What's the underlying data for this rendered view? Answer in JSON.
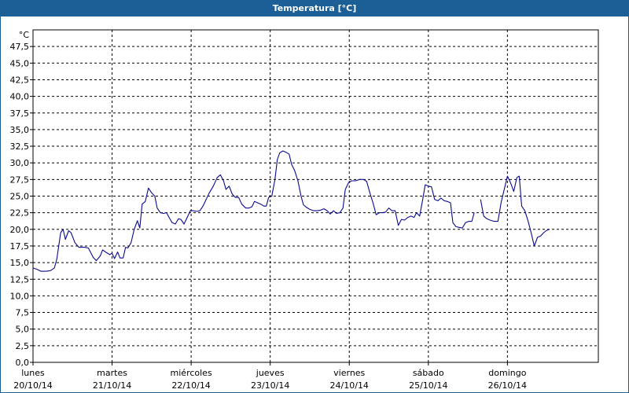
{
  "window": {
    "title": "Temperatura [°C]"
  },
  "chart_data": {
    "type": "line",
    "title": "Temperatura [°C]",
    "ylabel": "°C",
    "ylim": [
      0,
      50
    ],
    "yticks": [
      "0,0",
      "2,5",
      "5,0",
      "7,5",
      "10,0",
      "12,5",
      "15,0",
      "17,5",
      "20,0",
      "22,5",
      "25,0",
      "27,5",
      "30,0",
      "32,5",
      "35,0",
      "37,5",
      "40,0",
      "42,5",
      "45,0",
      "47,5"
    ],
    "xlim": [
      0,
      7.15
    ],
    "x_unit": "days since 20/10/14 00:00",
    "days": [
      {
        "name": "lunes",
        "date": "20/10/14"
      },
      {
        "name": "martes",
        "date": "21/10/14"
      },
      {
        "name": "miércoles",
        "date": "22/10/14"
      },
      {
        "name": "jueves",
        "date": "23/10/14"
      },
      {
        "name": "viernes",
        "date": "24/10/14"
      },
      {
        "name": "sábado",
        "date": "25/10/14"
      },
      {
        "name": "domingo",
        "date": "26/10/14"
      }
    ],
    "grid": true,
    "line_color": "#0a0a8c",
    "series": [
      {
        "segments": [
          [
            [
              0.0,
              14.2
            ],
            [
              0.05,
              14.0
            ],
            [
              0.1,
              13.7
            ],
            [
              0.17,
              13.7
            ],
            [
              0.22,
              13.8
            ],
            [
              0.27,
              14.2
            ],
            [
              0.3,
              15.5
            ],
            [
              0.35,
              19.5
            ],
            [
              0.38,
              20.0
            ],
            [
              0.41,
              18.5
            ],
            [
              0.45,
              19.8
            ],
            [
              0.48,
              19.5
            ],
            [
              0.53,
              18.0
            ],
            [
              0.58,
              17.3
            ],
            [
              0.65,
              17.3
            ],
            [
              0.7,
              17.2
            ],
            [
              0.76,
              15.8
            ],
            [
              0.8,
              15.3
            ],
            [
              0.85,
              16.0
            ],
            [
              0.88,
              16.9
            ],
            [
              0.93,
              16.5
            ],
            [
              0.97,
              16.2
            ],
            [
              1.0,
              16.4
            ],
            [
              1.03,
              15.6
            ],
            [
              1.07,
              16.6
            ],
            [
              1.1,
              15.7
            ],
            [
              1.14,
              15.7
            ],
            [
              1.17,
              17.3
            ],
            [
              1.2,
              17.2
            ],
            [
              1.24,
              18.0
            ],
            [
              1.28,
              20.0
            ],
            [
              1.32,
              21.3
            ],
            [
              1.35,
              20.2
            ],
            [
              1.38,
              23.8
            ],
            [
              1.42,
              24.2
            ],
            [
              1.46,
              26.2
            ],
            [
              1.5,
              25.5
            ],
            [
              1.54,
              25.0
            ],
            [
              1.57,
              23.2
            ],
            [
              1.61,
              22.5
            ],
            [
              1.65,
              22.4
            ],
            [
              1.69,
              22.5
            ],
            [
              1.72,
              21.8
            ],
            [
              1.76,
              21.0
            ],
            [
              1.8,
              20.8
            ],
            [
              1.84,
              21.6
            ],
            [
              1.87,
              21.5
            ],
            [
              1.91,
              20.8
            ],
            [
              1.95,
              21.8
            ],
            [
              1.99,
              22.8
            ],
            [
              2.03,
              22.8
            ],
            [
              2.07,
              22.7
            ],
            [
              2.11,
              22.8
            ],
            [
              2.15,
              23.5
            ],
            [
              2.19,
              24.5
            ],
            [
              2.23,
              25.5
            ],
            [
              2.28,
              26.5
            ],
            [
              2.33,
              27.8
            ],
            [
              2.37,
              28.2
            ],
            [
              2.41,
              27.3
            ],
            [
              2.44,
              26.0
            ],
            [
              2.48,
              26.5
            ],
            [
              2.52,
              25.3
            ],
            [
              2.56,
              24.8
            ],
            [
              2.6,
              24.8
            ],
            [
              2.64,
              23.8
            ],
            [
              2.69,
              23.2
            ],
            [
              2.73,
              23.2
            ],
            [
              2.77,
              23.4
            ],
            [
              2.8,
              24.2
            ],
            [
              2.84,
              24.0
            ],
            [
              2.88,
              23.8
            ],
            [
              2.92,
              23.5
            ],
            [
              2.95,
              23.5
            ],
            [
              2.98,
              24.8
            ],
            [
              3.02,
              25.0
            ],
            [
              3.06,
              27.5
            ],
            [
              3.09,
              30.5
            ],
            [
              3.12,
              31.5
            ],
            [
              3.16,
              31.8
            ],
            [
              3.2,
              31.6
            ],
            [
              3.24,
              31.3
            ],
            [
              3.27,
              29.8
            ],
            [
              3.31,
              28.8
            ],
            [
              3.35,
              27.3
            ],
            [
              3.39,
              25.0
            ],
            [
              3.42,
              23.7
            ],
            [
              3.46,
              23.3
            ],
            [
              3.5,
              23.0
            ],
            [
              3.55,
              22.8
            ],
            [
              3.6,
              22.8
            ],
            [
              3.64,
              22.9
            ],
            [
              3.68,
              23.1
            ],
            [
              3.72,
              22.8
            ],
            [
              3.76,
              22.3
            ],
            [
              3.8,
              22.8
            ],
            [
              3.84,
              22.4
            ],
            [
              3.88,
              22.5
            ],
            [
              3.92,
              23.2
            ],
            [
              3.95,
              26.0
            ],
            [
              3.99,
              27.0
            ],
            [
              4.03,
              27.3
            ],
            [
              4.08,
              27.3
            ],
            [
              4.13,
              27.5
            ],
            [
              4.18,
              27.5
            ],
            [
              4.22,
              27.2
            ],
            [
              4.26,
              25.5
            ],
            [
              4.3,
              24.0
            ],
            [
              4.34,
              22.2
            ],
            [
              4.38,
              22.5
            ],
            [
              4.42,
              22.5
            ],
            [
              4.46,
              22.6
            ],
            [
              4.5,
              23.2
            ],
            [
              4.54,
              22.8
            ],
            [
              4.58,
              22.8
            ],
            [
              4.62,
              20.6
            ],
            [
              4.66,
              21.5
            ],
            [
              4.7,
              21.4
            ],
            [
              4.74,
              21.8
            ],
            [
              4.78,
              22.0
            ],
            [
              4.82,
              21.8
            ],
            [
              4.85,
              22.5
            ],
            [
              4.89,
              22.0
            ],
            [
              4.93,
              24.6
            ],
            [
              4.96,
              26.7
            ],
            [
              5.0,
              26.5
            ],
            [
              5.04,
              26.4
            ],
            [
              5.08,
              24.5
            ],
            [
              5.12,
              24.3
            ],
            [
              5.16,
              24.7
            ],
            [
              5.2,
              24.3
            ],
            [
              5.24,
              24.2
            ],
            [
              5.28,
              24.0
            ],
            [
              5.31,
              21.0
            ],
            [
              5.35,
              20.4
            ],
            [
              5.39,
              20.3
            ],
            [
              5.43,
              20.2
            ],
            [
              5.47,
              21.0
            ],
            [
              5.51,
              21.2
            ],
            [
              5.55,
              21.2
            ],
            [
              5.58,
              22.5
            ]
          ],
          [
            [
              5.66,
              24.5
            ],
            [
              5.7,
              22.0
            ],
            [
              5.74,
              21.6
            ],
            [
              5.78,
              21.4
            ],
            [
              5.83,
              21.2
            ],
            [
              5.88,
              21.2
            ],
            [
              5.92,
              24.0
            ],
            [
              5.96,
              26.0
            ],
            [
              6.0,
              28.0
            ],
            [
              6.04,
              27.0
            ],
            [
              6.08,
              25.7
            ],
            [
              6.12,
              27.8
            ],
            [
              6.15,
              28.0
            ],
            [
              6.18,
              23.5
            ],
            [
              6.22,
              22.8
            ],
            [
              6.26,
              21.3
            ],
            [
              6.3,
              19.5
            ],
            [
              6.34,
              17.5
            ],
            [
              6.38,
              18.8
            ],
            [
              6.42,
              19.0
            ],
            [
              6.46,
              19.5
            ],
            [
              6.49,
              19.8
            ],
            [
              6.53,
              20.0
            ]
          ]
        ]
      }
    ]
  }
}
